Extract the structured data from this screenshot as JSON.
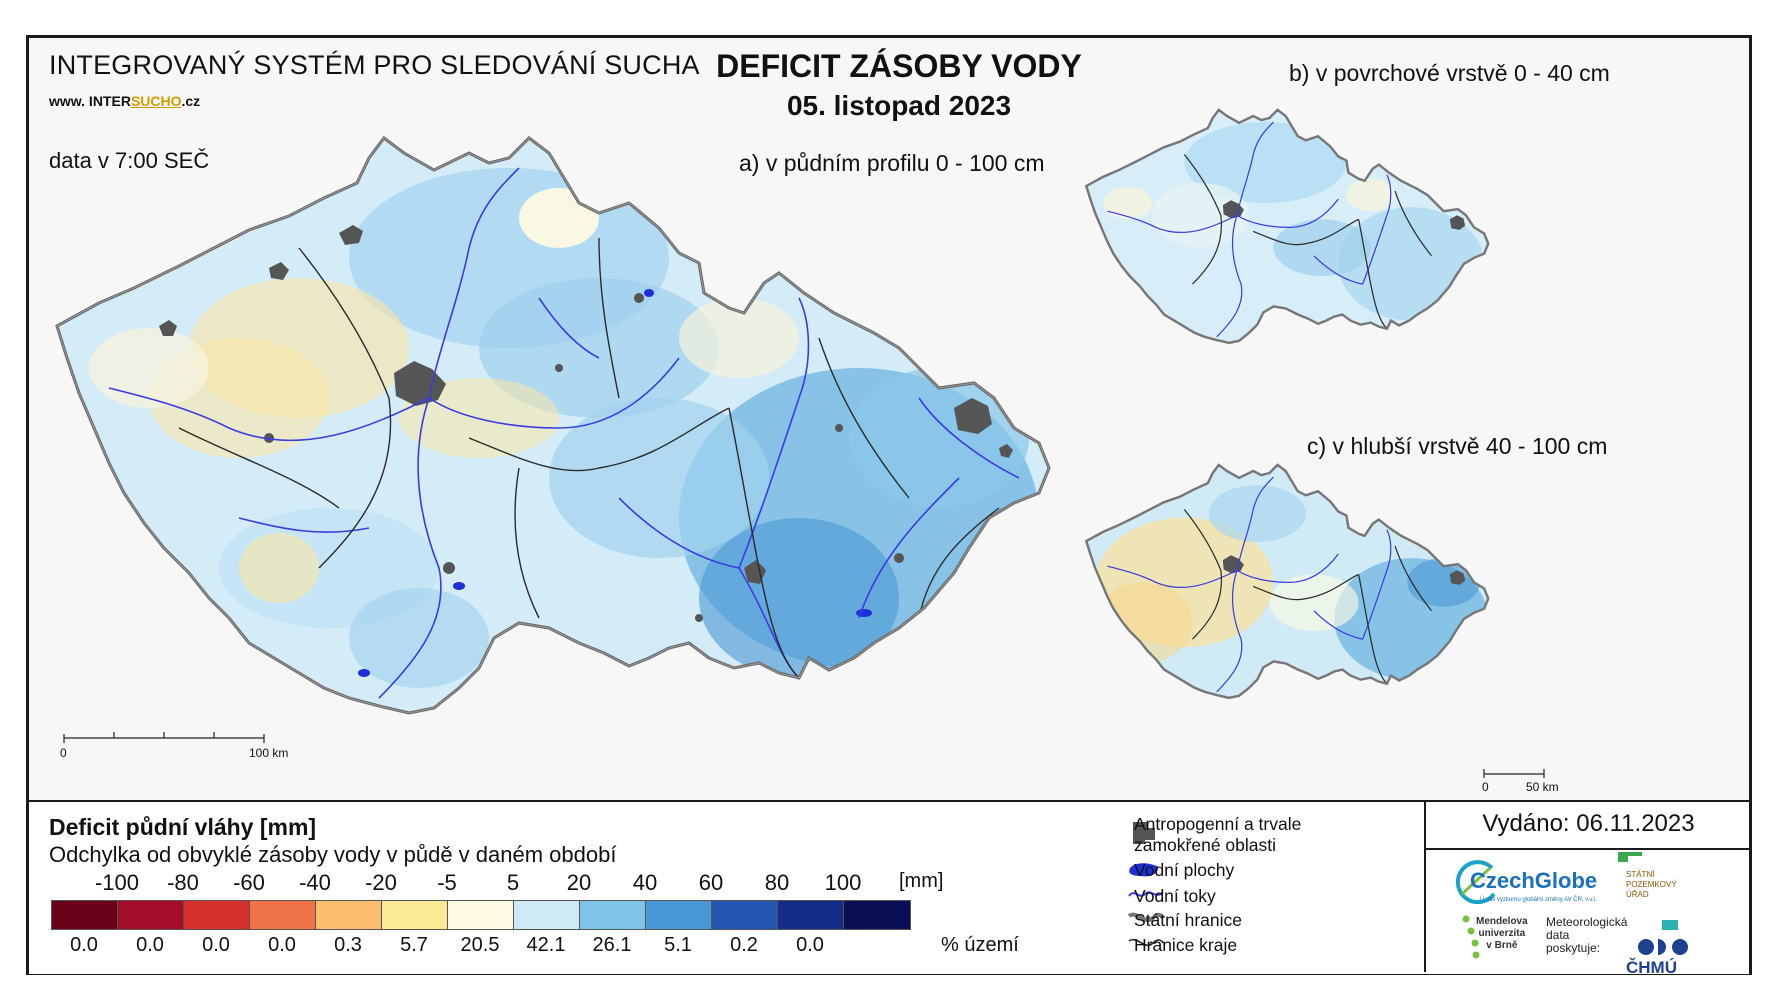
{
  "header": {
    "system_title": "INTEGROVANÝ SYSTÉM PRO SLEDOVÁNÍ SUCHA",
    "website_prefix": "www. INTER",
    "website_highlight": "SUCHO",
    "website_suffix": ".cz",
    "data_time": "data v 7:00 SEČ",
    "main_title": "DEFICIT ZÁSOBY VODY",
    "date": "05. listopad 2023"
  },
  "maps": {
    "a_title": "a) v půdním profilu 0 - 100 cm",
    "b_title": "b) v povrchové vrstvě 0 - 40 cm",
    "c_title": "c) v hlubší vrstvě 40 - 100 cm",
    "scale_main_start": "0",
    "scale_main_end": "100 km",
    "scale_small_start": "0",
    "scale_small_end": "50 km"
  },
  "legend": {
    "title": "Deficit půdní vláhy  [mm]",
    "subtitle": "Odchylka od obvyklé zásoby vody v půdě v daném období",
    "thresholds": [
      "-100",
      "-80",
      "-60",
      "-40",
      "-20",
      "-5",
      "5",
      "20",
      "40",
      "60",
      "80",
      "100"
    ],
    "unit": "[mm]",
    "bin_colors": [
      "#6b0019",
      "#a30e2a",
      "#d4302c",
      "#f07248",
      "#fdbf6f",
      "#fbe996",
      "#fffbe3",
      "#cfeaf6",
      "#7fc4e8",
      "#4a97d6",
      "#2356b0",
      "#142c86",
      "#0a0f55"
    ],
    "bin_percentages": [
      "0.0",
      "0.0",
      "0.0",
      "0.0",
      "0.3",
      "5.7",
      "20.5",
      "42.1",
      "26.1",
      "5.1",
      "0.2",
      "0.0",
      ""
    ],
    "percent_unit": "% území",
    "symbols": {
      "anthropogenic_line1": "Antropogenní a trvale",
      "anthropogenic_line2": "zamokřené oblasti",
      "water_areas": "Vodní plochy",
      "water_streams": "Vodní toky",
      "state_border": "Státní hranice",
      "region_border": "Hranice kraje"
    }
  },
  "publisher": {
    "issued": "Vydáno: 06.11.2023",
    "czechglobe": "CzechGlobe",
    "czechglobe_sub": "Ústav výzkumu globální změny AV ČR, v.v.i.",
    "spu_line1": "STÁTNÍ",
    "spu_line2": "POZEMKOVÝ",
    "spu_line3": "ÚŘAD",
    "mendel_line1": "Mendelova",
    "mendel_line2": "univerzita",
    "mendel_line3": "v Brně",
    "meteo_line1": "Meteorologická",
    "meteo_line2": "data",
    "meteo_line3": "poskytuje:",
    "chmu": "ČHMÚ"
  }
}
